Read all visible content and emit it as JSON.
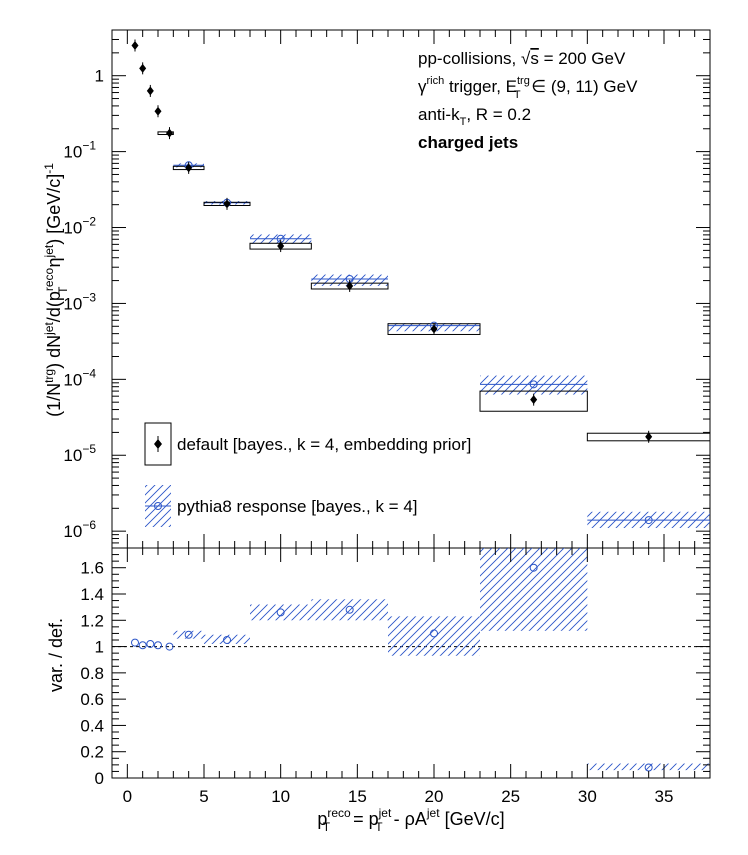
{
  "chart_data": [
    {
      "type": "scatter",
      "panel": "top",
      "yscale": "log",
      "xlim": [
        -1,
        38
      ],
      "ylim": [
        6e-07,
        4
      ],
      "ylabel": {
        "prefix": "(1/N",
        "trg": "trg",
        "mid1": ") dN",
        "jet1": "jet",
        "mid2": "/d(p",
        "reco": "reco",
        "T": "T",
        "eta": " η",
        "jet2": "jet",
        "suffix": ") [GeV/c]",
        "exp": "-1"
      },
      "annotations": {
        "line1": {
          "pre": "pp-collisions, ",
          "sqrt": "√",
          "s": "s",
          "post": " = 200 GeV"
        },
        "line2": {
          "gamma": "γ",
          "rich": "rich",
          "mid": " trigger, E",
          "trg": "trg",
          "T": "T",
          "post": " ∈ (9, 11) GeV"
        },
        "line3": {
          "pre": "anti-k",
          "T": "T",
          "post": ", R = 0.2"
        },
        "line4": "charged jets"
      },
      "yticks": [
        {
          "value": 1,
          "base": "1",
          "exp": ""
        },
        {
          "value": 0.1,
          "base": "10",
          "exp": "−1"
        },
        {
          "value": 0.01,
          "base": "10",
          "exp": "−2"
        },
        {
          "value": 0.001,
          "base": "10",
          "exp": "−3"
        },
        {
          "value": 0.0001,
          "base": "10",
          "exp": "−4"
        },
        {
          "value": 1e-05,
          "base": "10",
          "exp": "−5"
        },
        {
          "value": 1e-06,
          "base": "10",
          "exp": "−6"
        }
      ],
      "legend": [
        {
          "label": "default [bayes., k = 4, embedding prior]",
          "style": "box-marker"
        },
        {
          "label": "pythia8 response [bayes., k = 4]",
          "style": "hatch-circle"
        }
      ],
      "legend_position": "bottom-left",
      "series": [
        {
          "name": "default [bayes., k = 4, embedding prior]",
          "color": "#000000",
          "marker": "filled-diamond",
          "points": [
            {
              "x": 0.5,
              "y": 2.5,
              "xlo": 0.25,
              "xhi": 0.75,
              "ylo": 2.45,
              "yhi": 2.6
            },
            {
              "x": 1.0,
              "y": 1.25,
              "xlo": 0.75,
              "xhi": 1.25,
              "ylo": 1.2,
              "yhi": 1.3
            },
            {
              "x": 1.5,
              "y": 0.63,
              "xlo": 1.25,
              "xhi": 1.75,
              "ylo": 0.6,
              "yhi": 0.66
            },
            {
              "x": 2.0,
              "y": 0.34,
              "xlo": 1.75,
              "xhi": 2.25,
              "ylo": 0.325,
              "yhi": 0.355
            },
            {
              "x": 2.75,
              "y": 0.175,
              "xlo": 2.0,
              "xhi": 3.0,
              "ylo": 0.168,
              "yhi": 0.182
            },
            {
              "x": 4.0,
              "y": 0.061,
              "xlo": 3.0,
              "xhi": 5.0,
              "ylo": 0.058,
              "yhi": 0.064
            },
            {
              "x": 6.5,
              "y": 0.0205,
              "xlo": 5.0,
              "xhi": 8.0,
              "ylo": 0.0195,
              "yhi": 0.0215
            },
            {
              "x": 10.0,
              "y": 0.0057,
              "xlo": 8.0,
              "xhi": 12.0,
              "ylo": 0.0052,
              "yhi": 0.0062
            },
            {
              "x": 14.5,
              "y": 0.0017,
              "xlo": 12.0,
              "xhi": 17.0,
              "ylo": 0.00155,
              "yhi": 0.00185
            },
            {
              "x": 20.0,
              "y": 0.00046,
              "xlo": 17.0,
              "xhi": 23.0,
              "ylo": 0.00039,
              "yhi": 0.00054
            },
            {
              "x": 26.5,
              "y": 5.4e-05,
              "xlo": 23.0,
              "xhi": 30.0,
              "ylo": 3.8e-05,
              "yhi": 7e-05
            },
            {
              "x": 34.0,
              "y": 1.75e-05,
              "xlo": 30.0,
              "xhi": 38.0,
              "ylo": 1.55e-05,
              "yhi": 1.95e-05
            }
          ]
        },
        {
          "name": "pythia8 response [bayes., k = 4]",
          "color": "#2b55c8",
          "marker": "open-circle",
          "points": [
            {
              "x": 4.0,
              "y": 0.066,
              "xlo": 3.0,
              "xhi": 5.0,
              "ylo": 0.062,
              "yhi": 0.07
            },
            {
              "x": 6.5,
              "y": 0.0212,
              "xlo": 5.0,
              "xhi": 8.0,
              "ylo": 0.0201,
              "yhi": 0.0223
            },
            {
              "x": 10.0,
              "y": 0.0071,
              "xlo": 8.0,
              "xhi": 12.0,
              "ylo": 0.0061,
              "yhi": 0.0081
            },
            {
              "x": 14.5,
              "y": 0.0021,
              "xlo": 12.0,
              "xhi": 17.0,
              "ylo": 0.0017,
              "yhi": 0.0024
            },
            {
              "x": 20.0,
              "y": 0.00051,
              "xlo": 17.0,
              "xhi": 23.0,
              "ylo": 0.00043,
              "yhi": 0.00055
            },
            {
              "x": 26.5,
              "y": 8.6e-05,
              "xlo": 23.0,
              "xhi": 30.0,
              "ylo": 6.3e-05,
              "yhi": 0.000112
            },
            {
              "x": 34.0,
              "y": 1.4e-06,
              "xlo": 30.0,
              "xhi": 38.0,
              "ylo": 1.1e-06,
              "yhi": 1.8e-06
            }
          ]
        }
      ]
    },
    {
      "type": "scatter",
      "panel": "bottom",
      "xlim": [
        -1,
        38
      ],
      "ylim": [
        0,
        1.75
      ],
      "ylabel": "var. / def.",
      "reference_line": 1.0,
      "xlabel": {
        "p1": "p",
        "reco": "reco",
        "T1": "T",
        "eq": " = p",
        "jet1": "jet",
        "T2": "T",
        "mid": " - ρA",
        "jet2": "jet",
        "unit": " [GeV/c]"
      },
      "xticks": [
        0,
        5,
        10,
        15,
        20,
        25,
        30,
        35
      ],
      "xtick_labels": [
        "0",
        "5",
        "10",
        "15",
        "20",
        "25",
        "30",
        "35"
      ],
      "yticks": [
        0,
        0.2,
        0.4,
        0.6,
        0.8,
        1,
        1.2,
        1.4,
        1.6
      ],
      "ytick_labels": [
        "0",
        "0.2",
        "0.4",
        "0.6",
        "0.8",
        "1",
        "1.2",
        "1.4",
        "1.6"
      ],
      "series": [
        {
          "name": "pythia8 response [bayes., k = 4]",
          "color": "#2b55c8",
          "marker": "open-circle",
          "points": [
            {
              "x": 0.5,
              "y": 1.03
            },
            {
              "x": 1.0,
              "y": 1.01
            },
            {
              "x": 1.5,
              "y": 1.02
            },
            {
              "x": 2.0,
              "y": 1.01
            },
            {
              "x": 2.75,
              "y": 1.0
            },
            {
              "x": 4.0,
              "y": 1.09,
              "xlo": 3.0,
              "xhi": 5.0,
              "ylo": 1.06,
              "yhi": 1.12
            },
            {
              "x": 6.5,
              "y": 1.05,
              "xlo": 5.0,
              "xhi": 8.0,
              "ylo": 1.02,
              "yhi": 1.09
            },
            {
              "x": 10.0,
              "y": 1.26,
              "xlo": 8.0,
              "xhi": 12.0,
              "ylo": 1.2,
              "yhi": 1.32
            },
            {
              "x": 14.5,
              "y": 1.28,
              "xlo": 12.0,
              "xhi": 17.0,
              "ylo": 1.2,
              "yhi": 1.36
            },
            {
              "x": 20.0,
              "y": 1.1,
              "xlo": 17.0,
              "xhi": 23.0,
              "ylo": 0.93,
              "yhi": 1.23
            },
            {
              "x": 26.5,
              "y": 1.6,
              "xlo": 23.0,
              "xhi": 30.0,
              "ylo": 1.12,
              "yhi": 1.75
            },
            {
              "x": 34.0,
              "y": 0.08,
              "xlo": 30.0,
              "xhi": 38.0,
              "ylo": 0.06,
              "yhi": 0.11
            }
          ]
        }
      ]
    }
  ]
}
